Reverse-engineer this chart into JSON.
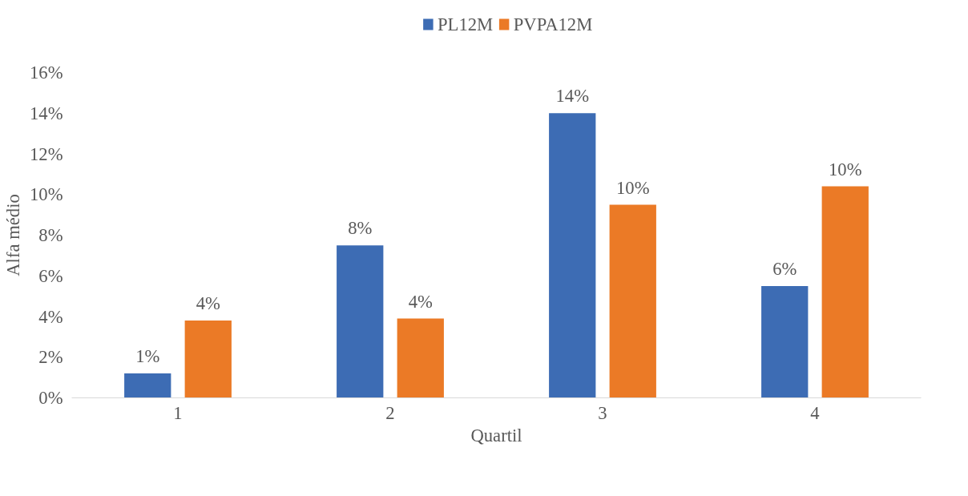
{
  "chart_data": {
    "type": "bar",
    "xlabel": "Quartil",
    "ylabel": "Alfa médio",
    "categories": [
      "1",
      "2",
      "3",
      "4"
    ],
    "series": [
      {
        "name": "PL12M",
        "color": "#3d6cb4",
        "values": [
          1.2,
          7.5,
          14.0,
          5.5
        ],
        "value_labels": [
          "1%",
          "8%",
          "14%",
          "6%"
        ]
      },
      {
        "name": "PVPA12M",
        "color": "#eb7a26",
        "values": [
          3.8,
          3.9,
          9.5,
          10.4
        ],
        "value_labels": [
          "4%",
          "4%",
          "10%",
          "10%"
        ]
      }
    ],
    "ylim": [
      0,
      16
    ],
    "yticks": [
      {
        "value": 0,
        "label": "0%"
      },
      {
        "value": 2,
        "label": "2%"
      },
      {
        "value": 4,
        "label": "4%"
      },
      {
        "value": 6,
        "label": "6%"
      },
      {
        "value": 8,
        "label": "8%"
      },
      {
        "value": 10,
        "label": "10%"
      },
      {
        "value": 12,
        "label": "12%"
      },
      {
        "value": 14,
        "label": "14%"
      },
      {
        "value": 16,
        "label": "16%"
      }
    ],
    "grid": false,
    "legend": "top"
  }
}
